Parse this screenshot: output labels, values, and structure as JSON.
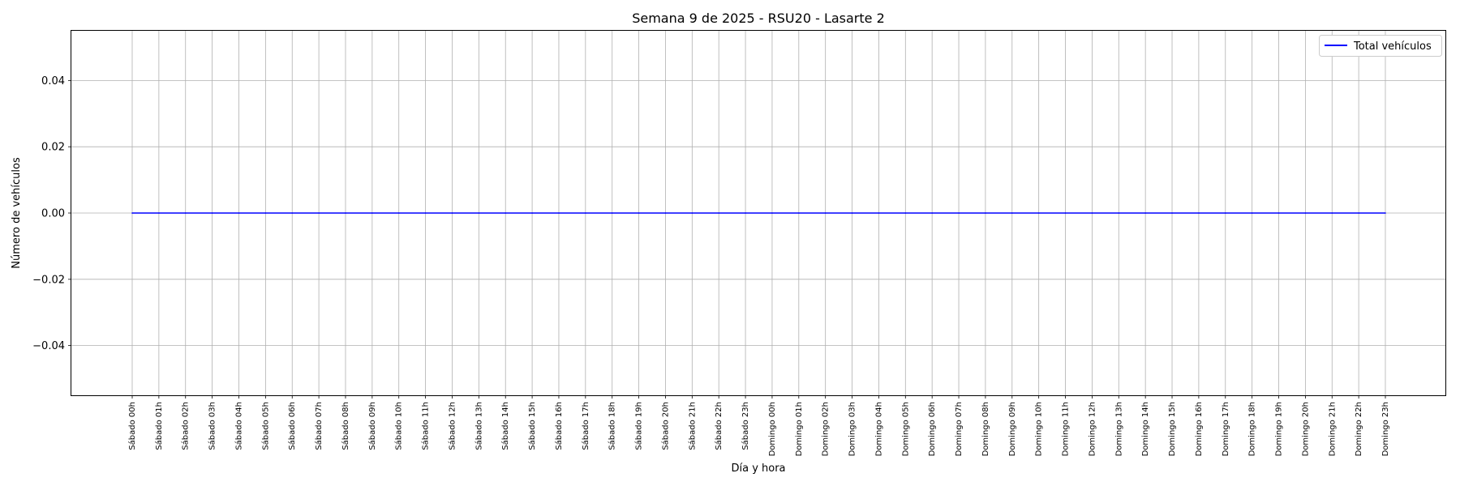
{
  "chart_data": {
    "type": "line",
    "title": "Semana 9 de 2025 - RSU20 - Lasarte 2",
    "xlabel": "Día y hora",
    "ylabel": "Número de vehículos",
    "categories": [
      "Sábado 00h",
      "Sábado 01h",
      "Sábado 02h",
      "Sábado 03h",
      "Sábado 04h",
      "Sábado 05h",
      "Sábado 06h",
      "Sábado 07h",
      "Sábado 08h",
      "Sábado 09h",
      "Sábado 10h",
      "Sábado 11h",
      "Sábado 12h",
      "Sábado 13h",
      "Sábado 14h",
      "Sábado 15h",
      "Sábado 16h",
      "Sábado 17h",
      "Sábado 18h",
      "Sábado 19h",
      "Sábado 20h",
      "Sábado 21h",
      "Sábado 22h",
      "Sábado 23h",
      "Domingo 00h",
      "Domingo 01h",
      "Domingo 02h",
      "Domingo 03h",
      "Domingo 04h",
      "Domingo 05h",
      "Domingo 06h",
      "Domingo 07h",
      "Domingo 08h",
      "Domingo 09h",
      "Domingo 10h",
      "Domingo 11h",
      "Domingo 12h",
      "Domingo 13h",
      "Domingo 14h",
      "Domingo 15h",
      "Domingo 16h",
      "Domingo 17h",
      "Domingo 18h",
      "Domingo 19h",
      "Domingo 20h",
      "Domingo 21h",
      "Domingo 22h",
      "Domingo 23h"
    ],
    "series": [
      {
        "name": "Total vehículos",
        "color": "#0000ff",
        "values": [
          0,
          0,
          0,
          0,
          0,
          0,
          0,
          0,
          0,
          0,
          0,
          0,
          0,
          0,
          0,
          0,
          0,
          0,
          0,
          0,
          0,
          0,
          0,
          0,
          0,
          0,
          0,
          0,
          0,
          0,
          0,
          0,
          0,
          0,
          0,
          0,
          0,
          0,
          0,
          0,
          0,
          0,
          0,
          0,
          0,
          0,
          0,
          0
        ]
      }
    ],
    "ylim": [
      -0.055,
      0.055
    ],
    "yticks": [
      -0.04,
      -0.02,
      0.0,
      0.02,
      0.04
    ],
    "ytick_labels": [
      "−0.04",
      "−0.02",
      "0.00",
      "0.02",
      "0.04"
    ],
    "grid": true,
    "legend_position": "top-right"
  }
}
